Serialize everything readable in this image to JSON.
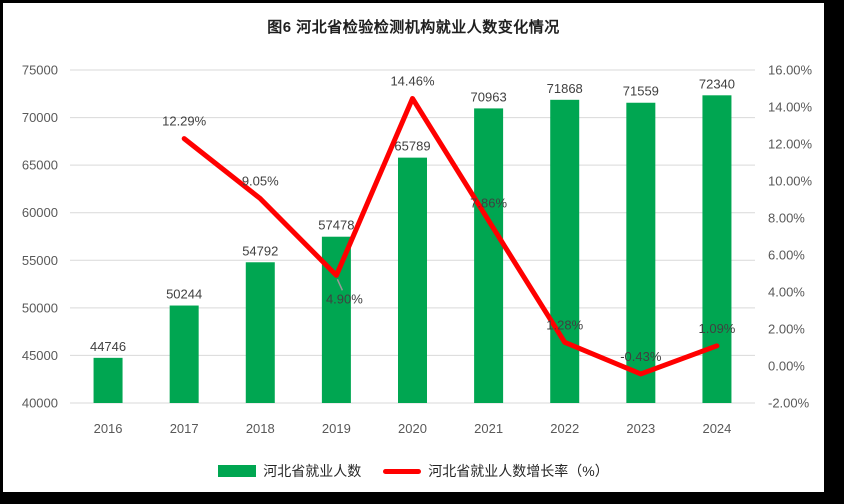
{
  "chart_data": {
    "type": "combo-bar-line",
    "title": "图6 河北省检验检测机构就业人数变化情况",
    "categories": [
      "2016",
      "2017",
      "2018",
      "2019",
      "2020",
      "2021",
      "2022",
      "2023",
      "2024"
    ],
    "series": [
      {
        "name": "河北省就业人数",
        "type": "bar",
        "axis": "left",
        "color": "#00A651",
        "values": [
          44746,
          50244,
          54792,
          57478,
          65789,
          70963,
          71868,
          71559,
          72340
        ],
        "labels": [
          "44746",
          "50244",
          "54792",
          "57478",
          "65789",
          "70963",
          "71868",
          "71559",
          "72340"
        ]
      },
      {
        "name": "河北省就业人数增长率（%）",
        "type": "line",
        "axis": "right",
        "color": "#FF0000",
        "x": [
          "2017",
          "2018",
          "2019",
          "2020",
          "2021",
          "2022",
          "2023",
          "2024"
        ],
        "values": [
          12.29,
          9.05,
          4.9,
          14.46,
          7.86,
          1.28,
          -0.43,
          1.09
        ],
        "labels": [
          "12.29%",
          "9.05%",
          "4.90%",
          "14.46%",
          "7.86%",
          "1.28%",
          "-0.43%",
          "1.09%"
        ],
        "label_positions": [
          "above",
          "above",
          "below",
          "above",
          "above",
          "above",
          "above",
          "above"
        ]
      }
    ],
    "left_axis": {
      "min": 40000,
      "max": 75000,
      "step": 5000,
      "tick_labels": [
        "75000",
        "70000",
        "65000",
        "60000",
        "55000",
        "50000",
        "45000",
        "40000"
      ]
    },
    "right_axis": {
      "min": -2,
      "max": 16,
      "step": 2,
      "unit": "%",
      "tick_labels": [
        "16.00%",
        "14.00%",
        "12.00%",
        "10.00%",
        "8.00%",
        "6.00%",
        "4.00%",
        "2.00%",
        "0.00%",
        "-2.00%"
      ]
    },
    "grid": true,
    "legend_position": "bottom"
  },
  "colors": {
    "bar": "#00A651",
    "line": "#FF0000",
    "gridline": "#D9D9D9",
    "axis_text": "#595959",
    "data_label_text": "#404040",
    "title_text": "#1f1f1f",
    "leader_line": "#999999",
    "frame": "#000000",
    "background": "#ffffff"
  }
}
